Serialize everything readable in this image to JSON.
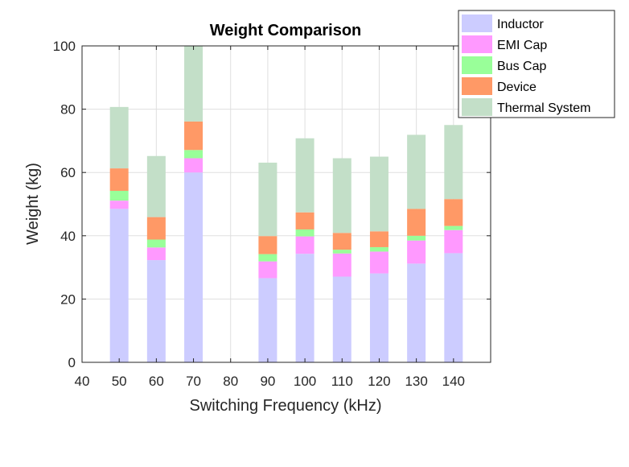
{
  "chart_data": {
    "type": "bar",
    "stacked": true,
    "title": "Weight Comparison",
    "xlabel": "Switching Frequency (kHz)",
    "ylabel": "Weight (kg)",
    "xlim": [
      40,
      150
    ],
    "ylim": [
      0,
      100
    ],
    "xticks": [
      40,
      50,
      60,
      70,
      80,
      90,
      100,
      110,
      120,
      130,
      140
    ],
    "yticks": [
      0,
      20,
      40,
      60,
      80,
      100
    ],
    "grid": true,
    "legend_position": "top-right",
    "x": [
      50,
      60,
      70,
      90,
      100,
      110,
      120,
      130,
      140
    ],
    "series": [
      {
        "name": "Inductor",
        "color": "#ccccff",
        "values": [
          48.5,
          32.3,
          60.0,
          26.6,
          34.3,
          27.1,
          28.1,
          31.2,
          34.5
        ]
      },
      {
        "name": "EMI Cap",
        "color": "#ff99ff",
        "values": [
          2.6,
          4.0,
          4.5,
          5.3,
          5.5,
          7.3,
          6.9,
          7.3,
          7.3
        ]
      },
      {
        "name": "Bus Cap",
        "color": "#99ff99",
        "values": [
          3.1,
          2.5,
          2.6,
          2.3,
          2.2,
          1.2,
          1.4,
          1.5,
          1.3
        ]
      },
      {
        "name": "Device",
        "color": "#ff9966",
        "values": [
          7.1,
          7.1,
          9.0,
          5.7,
          5.4,
          5.3,
          5.0,
          8.5,
          8.5
        ]
      },
      {
        "name": "Thermal System",
        "color": "#c3dfc8",
        "values": [
          19.4,
          19.3,
          23.8,
          23.2,
          23.4,
          23.6,
          23.6,
          23.4,
          23.4
        ]
      }
    ]
  }
}
